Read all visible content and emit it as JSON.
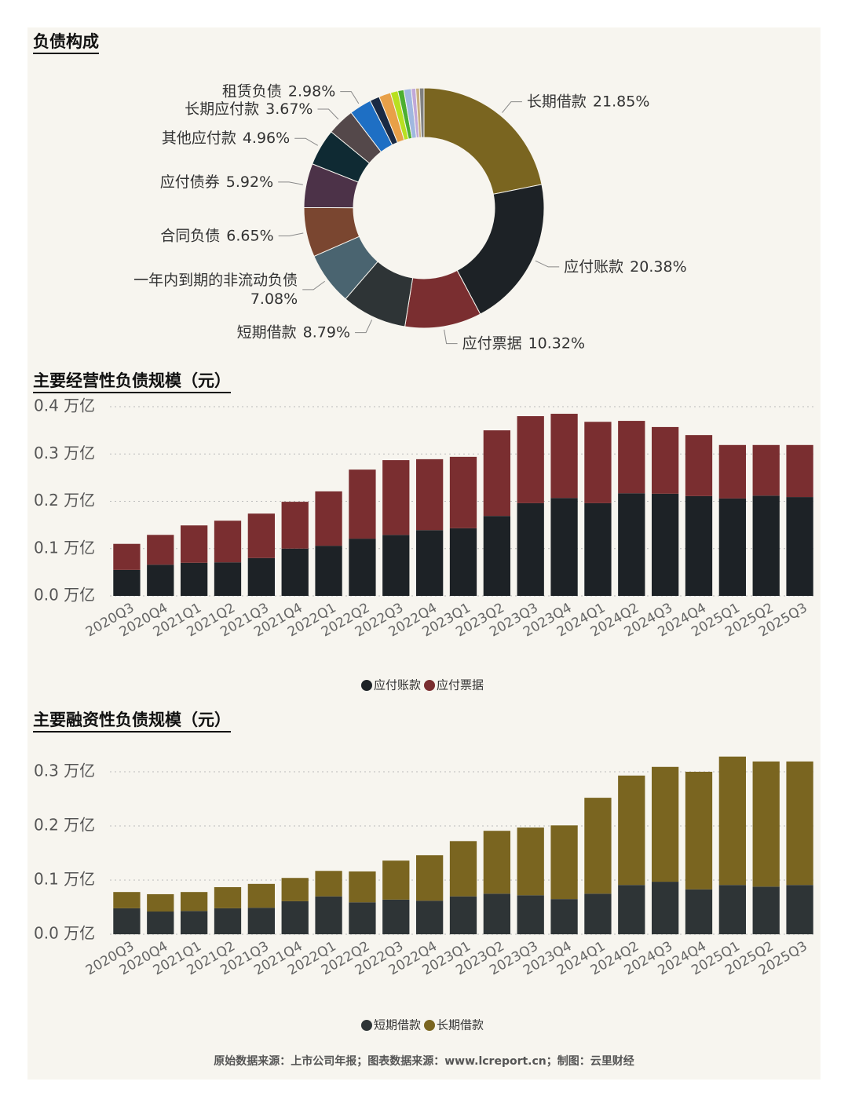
{
  "chart_data": [
    {
      "type": "donut",
      "title": "负债构成",
      "categories": [
        "长期借款",
        "应付账款",
        "应付票据",
        "短期借款",
        "一年内到期的非流动负债",
        "合同负债",
        "应付债券",
        "其他应付款",
        "长期应付款",
        "租赁负债",
        null,
        null,
        null,
        null,
        null,
        null,
        null,
        null
      ],
      "values": [
        21.85,
        20.38,
        10.32,
        8.79,
        7.08,
        6.65,
        5.92,
        4.96,
        3.67,
        2.98,
        1.3,
        1.6,
        1.0,
        0.8,
        1.0,
        0.6,
        0.5,
        0.6
      ],
      "value_labels": [
        "21.85%",
        "20.38%",
        "10.32%",
        "8.79%",
        "7.08%",
        "6.65%",
        "5.92%",
        "4.96%",
        "3.67%",
        "2.98%",
        null,
        null,
        null,
        null,
        null,
        null,
        null,
        null
      ],
      "colors": [
        "#7a6520",
        "#1d2226",
        "#7a2e30",
        "#2e3436",
        "#4a6470",
        "#7a4630",
        "#4c3248",
        "#0f2a33",
        "#54484a",
        "#1e6fc4",
        "#1a2a44",
        "#e8a048",
        "#b8e020",
        "#4caf30",
        "#a0b8e0",
        "#c0a8d8",
        "#c8b080",
        "#808080"
      ]
    },
    {
      "type": "stacked_bar",
      "title": "主要经营性负债规模（元）",
      "categories": [
        "2020Q3",
        "2020Q4",
        "2021Q1",
        "2021Q2",
        "2021Q3",
        "2021Q4",
        "2022Q1",
        "2022Q2",
        "2022Q3",
        "2022Q4",
        "2023Q1",
        "2023Q2",
        "2023Q3",
        "2023Q4",
        "2024Q1",
        "2024Q2",
        "2024Q3",
        "2024Q4",
        "2025Q1",
        "2025Q2",
        "2025Q3"
      ],
      "series": [
        {
          "name": "应付账款",
          "color": "#1d2226",
          "values": [
            0.055,
            0.066,
            0.07,
            0.071,
            0.08,
            0.1,
            0.106,
            0.121,
            0.129,
            0.139,
            0.143,
            0.169,
            0.196,
            0.207,
            0.196,
            0.217,
            0.216,
            0.211,
            0.206,
            0.212,
            0.209
          ]
        },
        {
          "name": "应付票据",
          "color": "#7a2e30",
          "values": [
            0.055,
            0.063,
            0.079,
            0.088,
            0.094,
            0.099,
            0.115,
            0.146,
            0.158,
            0.15,
            0.151,
            0.181,
            0.184,
            0.178,
            0.172,
            0.153,
            0.141,
            0.129,
            0.113,
            0.107,
            0.11
          ]
        }
      ],
      "ylim": [
        0,
        0.4
      ],
      "yticks": [
        {
          "value": 0,
          "label": "0.0 万亿"
        },
        {
          "value": 0.1,
          "label": "0.1 万亿"
        },
        {
          "value": 0.2,
          "label": "0.2 万亿"
        },
        {
          "value": 0.3,
          "label": "0.3 万亿"
        },
        {
          "value": 0.4,
          "label": "0.4 万亿"
        }
      ],
      "grid": true,
      "legend": "bottom"
    },
    {
      "type": "stacked_bar",
      "title": "主要融资性负债规模（元）",
      "categories": [
        "2020Q3",
        "2020Q4",
        "2021Q1",
        "2021Q2",
        "2021Q3",
        "2021Q4",
        "2022Q1",
        "2022Q2",
        "2022Q3",
        "2022Q4",
        "2023Q1",
        "2023Q2",
        "2023Q3",
        "2023Q4",
        "2024Q1",
        "2024Q2",
        "2024Q3",
        "2024Q4",
        "2025Q1",
        "2025Q2",
        "2025Q3"
      ],
      "series": [
        {
          "name": "短期借款",
          "color": "#2e3436",
          "values": [
            0.048,
            0.042,
            0.043,
            0.048,
            0.049,
            0.061,
            0.07,
            0.059,
            0.064,
            0.062,
            0.07,
            0.075,
            0.072,
            0.065,
            0.075,
            0.091,
            0.097,
            0.083,
            0.091,
            0.088,
            0.091
          ]
        },
        {
          "name": "长期借款",
          "color": "#7a6520",
          "values": [
            0.03,
            0.032,
            0.035,
            0.039,
            0.044,
            0.043,
            0.047,
            0.057,
            0.072,
            0.084,
            0.102,
            0.116,
            0.125,
            0.136,
            0.177,
            0.202,
            0.212,
            0.217,
            0.237,
            0.231,
            0.228
          ]
        }
      ],
      "ylim": [
        0,
        0.35
      ],
      "yticks": [
        {
          "value": 0,
          "label": "0.0 万亿"
        },
        {
          "value": 0.1,
          "label": "0.1 万亿"
        },
        {
          "value": 0.2,
          "label": "0.2 万亿"
        },
        {
          "value": 0.3,
          "label": "0.3 万亿"
        }
      ],
      "grid": true,
      "legend": "bottom"
    }
  ],
  "footer": "原始数据来源：上市公司年报；图表数据来源：www.lcreport.cn；制图：云里财经"
}
